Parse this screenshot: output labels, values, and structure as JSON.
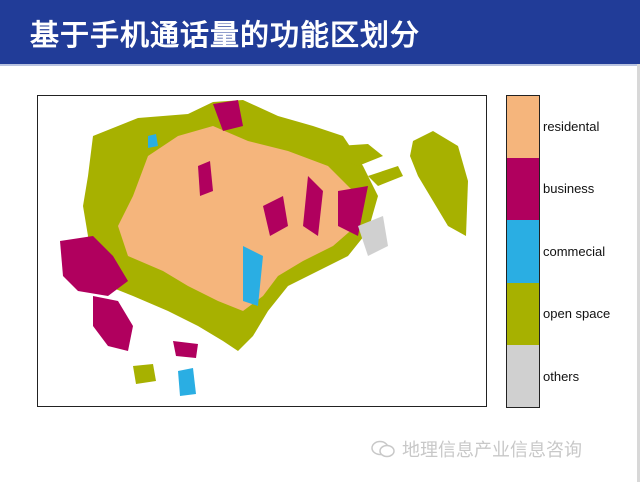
{
  "slide": {
    "title": "基于手机通话量的功能区划分"
  },
  "legend": {
    "items": [
      {
        "label": "residental",
        "color": "#f5b57c"
      },
      {
        "label": "business",
        "color": "#b0005e"
      },
      {
        "label": "commecial",
        "color": "#2aaee3"
      },
      {
        "label": "open space",
        "color": "#a7b100"
      },
      {
        "label": "others",
        "color": "#d0d0d0"
      }
    ]
  },
  "watermark": {
    "text": "地理信息产业信息咨询",
    "icon": "wechat-icon"
  }
}
